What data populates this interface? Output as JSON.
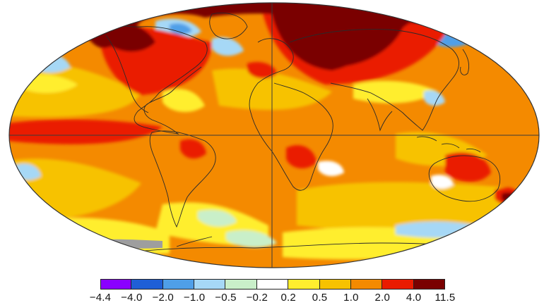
{
  "colors": {
    "ocean_base": "#f7a600",
    "land_outline": "#2a2a2a",
    "grid_line": "#3a3a3a",
    "missing_data": "#9e9e9e"
  },
  "legend": {
    "colors": [
      "#8a00ff",
      "#1f5fd6",
      "#4f9fe8",
      "#a6d8f6",
      "#c9efc9",
      "#ffffff",
      "#ffee2e",
      "#f7c200",
      "#f48a00",
      "#ea1b00",
      "#7a0000"
    ],
    "ticks": [
      "−4.4",
      "−4.0",
      "−2.0",
      "−1.0",
      "−0.5",
      "−0.2",
      "0.2",
      "0.5",
      "1.0",
      "2.0",
      "4.0",
      "11.5"
    ]
  }
}
